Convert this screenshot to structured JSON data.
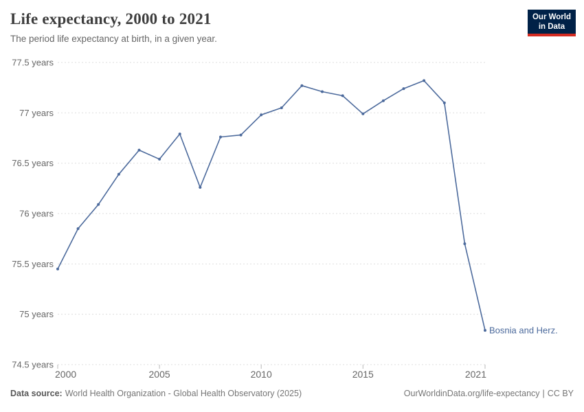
{
  "header": {
    "title": "Life expectancy, 2000 to 2021",
    "subtitle": "The period life expectancy at birth, in a given year.",
    "logo": {
      "line1": "Our World",
      "line2": "in Data"
    }
  },
  "chart_data": {
    "type": "line",
    "title": "Life expectancy, 2000 to 2021",
    "xlabel": "",
    "ylabel": "",
    "x": [
      2000,
      2001,
      2002,
      2003,
      2004,
      2005,
      2006,
      2007,
      2008,
      2009,
      2010,
      2011,
      2012,
      2013,
      2014,
      2015,
      2016,
      2017,
      2018,
      2019,
      2020,
      2021
    ],
    "series": [
      {
        "name": "Bosnia and Herz.",
        "color": "#4c6a9c",
        "values": [
          75.45,
          75.85,
          76.09,
          76.39,
          76.63,
          76.54,
          76.79,
          76.26,
          76.76,
          76.78,
          76.98,
          77.05,
          77.27,
          77.21,
          77.17,
          76.99,
          77.12,
          77.24,
          77.32,
          77.1,
          75.7,
          74.84
        ]
      }
    ],
    "x_ticks": [
      2000,
      2005,
      2010,
      2015,
      2021
    ],
    "y_ticks": [
      77.5,
      77,
      76.5,
      76,
      75.5,
      75,
      74.5
    ],
    "y_tick_suffix": " years",
    "xlim": [
      2000,
      2021
    ],
    "ylim": [
      74.5,
      77.5
    ],
    "grid": "horizontal-dashed",
    "legend_position": "line-end-label",
    "end_label": "Bosnia and Herz."
  },
  "footer": {
    "source_label": "Data source:",
    "source_text": "World Health Organization - Global Health Observatory (2025)",
    "link_text": "OurWorldinData.org/life-expectancy",
    "divider": "|",
    "license_text": "CC BY"
  },
  "colors": {
    "line": "#4c6a9c",
    "grid": "#dddddd",
    "axis_text": "#666666",
    "logo_bg": "#002147",
    "logo_stripe": "#d42b21",
    "title_text": "#3d3d3d",
    "subtitle_text": "#666666",
    "footer_text": "#757575"
  }
}
